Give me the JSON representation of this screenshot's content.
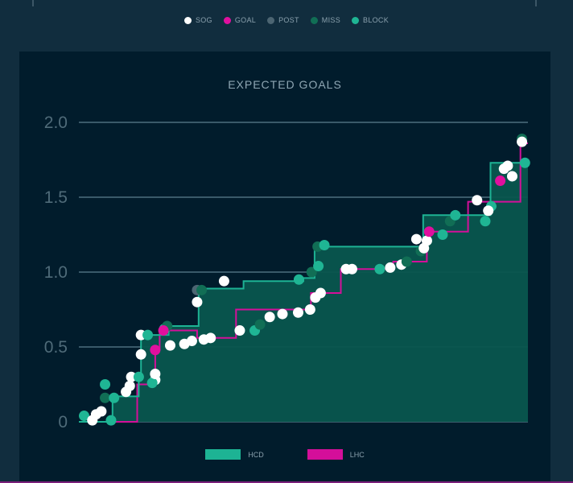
{
  "legend_top": [
    {
      "label": "SOG",
      "color": "#ffffff"
    },
    {
      "label": "GOAL",
      "color": "#e0109e"
    },
    {
      "label": "POST",
      "color": "#4c6572"
    },
    {
      "label": "MISS",
      "color": "#116e55"
    },
    {
      "label": "BLOCK",
      "color": "#1fb594"
    }
  ],
  "chart_data": {
    "type": "line",
    "title": "EXPECTED GOALS",
    "xlabel": "",
    "ylabel": "",
    "ylim": [
      0,
      2.0
    ],
    "xlim": [
      0,
      60
    ],
    "grid": true,
    "y_ticks": [
      "0",
      "0.5",
      "1.0",
      "1.5",
      "2.0"
    ],
    "y_tick_values": [
      0,
      0.5,
      1.0,
      1.5,
      2.0
    ],
    "legend_position": "bottom-center",
    "series": [
      {
        "name": "HCD",
        "color": "#1db394",
        "fill": "#08564e",
        "points": [
          [
            0,
            0
          ],
          [
            4.5,
            0
          ],
          [
            4.5,
            0.17
          ],
          [
            8,
            0.17
          ],
          [
            8,
            0.3
          ],
          [
            8.3,
            0.3
          ],
          [
            8.3,
            0.58
          ],
          [
            12,
            0.58
          ],
          [
            12,
            0.64
          ],
          [
            16,
            0.64
          ],
          [
            16,
            0.89
          ],
          [
            22,
            0.89
          ],
          [
            22,
            0.94
          ],
          [
            30,
            0.94
          ],
          [
            30,
            0.96
          ],
          [
            31.5,
            0.96
          ],
          [
            31.5,
            1.17
          ],
          [
            46,
            1.17
          ],
          [
            46,
            1.38
          ],
          [
            55,
            1.38
          ],
          [
            55,
            1.73
          ],
          [
            60,
            1.73
          ]
        ],
        "shots": [
          {
            "x": 0.7,
            "y": 0.04,
            "type": "BLOCK"
          },
          {
            "x": 4.3,
            "y": 0.01,
            "type": "BLOCK"
          },
          {
            "x": 3.5,
            "y": 0.25,
            "type": "BLOCK"
          },
          {
            "x": 3.5,
            "y": 0.16,
            "type": "MISS"
          },
          {
            "x": 4.7,
            "y": 0.16,
            "type": "BLOCK"
          },
          {
            "x": 6.3,
            "y": 0.2,
            "type": "SOG"
          },
          {
            "x": 6.8,
            "y": 0.24,
            "type": "SOG"
          },
          {
            "x": 7.0,
            "y": 0.3,
            "type": "SOG"
          },
          {
            "x": 8.0,
            "y": 0.3,
            "type": "BLOCK"
          },
          {
            "x": 8.3,
            "y": 0.45,
            "type": "SOG"
          },
          {
            "x": 8.3,
            "y": 0.58,
            "type": "SOG"
          },
          {
            "x": 9.2,
            "y": 0.58,
            "type": "BLOCK"
          },
          {
            "x": 11.4,
            "y": 0.62,
            "type": "BLOCK"
          },
          {
            "x": 11.8,
            "y": 0.64,
            "type": "MISS"
          },
          {
            "x": 15.8,
            "y": 0.8,
            "type": "SOG"
          },
          {
            "x": 15.8,
            "y": 0.88,
            "type": "POST"
          },
          {
            "x": 16.4,
            "y": 0.88,
            "type": "MISS"
          },
          {
            "x": 19.4,
            "y": 0.94,
            "type": "SOG"
          },
          {
            "x": 29.4,
            "y": 0.95,
            "type": "BLOCK"
          },
          {
            "x": 31.1,
            "y": 1.0,
            "type": "MISS"
          },
          {
            "x": 32.0,
            "y": 1.04,
            "type": "BLOCK"
          },
          {
            "x": 31.9,
            "y": 1.17,
            "type": "MISS"
          },
          {
            "x": 32.8,
            "y": 1.18,
            "type": "BLOCK"
          },
          {
            "x": 45.7,
            "y": 1.14,
            "type": "MISS"
          },
          {
            "x": 46.1,
            "y": 1.16,
            "type": "SOG"
          },
          {
            "x": 46.5,
            "y": 1.21,
            "type": "SOG"
          },
          {
            "x": 49.6,
            "y": 1.34,
            "type": "MISS"
          },
          {
            "x": 50.3,
            "y": 1.38,
            "type": "BLOCK"
          },
          {
            "x": 55.1,
            "y": 1.44,
            "type": "BLOCK"
          },
          {
            "x": 59.2,
            "y": 1.89,
            "type": "MISS"
          },
          {
            "x": 59.6,
            "y": 1.73,
            "type": "BLOCK"
          }
        ]
      },
      {
        "name": "LHC",
        "color": "#d40f9a",
        "points": [
          [
            0,
            0
          ],
          [
            7.8,
            0
          ],
          [
            7.8,
            0.25
          ],
          [
            10.2,
            0.25
          ],
          [
            10.2,
            0.48
          ],
          [
            10.8,
            0.48
          ],
          [
            10.8,
            0.61
          ],
          [
            15.8,
            0.61
          ],
          [
            15.8,
            0.56
          ],
          [
            21,
            0.56
          ],
          [
            21,
            0.75
          ],
          [
            31,
            0.75
          ],
          [
            31,
            0.86
          ],
          [
            35,
            0.86
          ],
          [
            35,
            1.02
          ],
          [
            42,
            1.02
          ],
          [
            42,
            1.07
          ],
          [
            46.5,
            1.07
          ],
          [
            46.5,
            1.27
          ],
          [
            52,
            1.27
          ],
          [
            52,
            1.47
          ],
          [
            59,
            1.47
          ],
          [
            59,
            1.86
          ],
          [
            60,
            1.86
          ]
        ],
        "shots": [
          {
            "x": 1.8,
            "y": 0.01,
            "type": "SOG"
          },
          {
            "x": 2.3,
            "y": 0.05,
            "type": "SOG"
          },
          {
            "x": 3.0,
            "y": 0.07,
            "type": "SOG"
          },
          {
            "x": 10.2,
            "y": 0.28,
            "type": "SOG"
          },
          {
            "x": 9.8,
            "y": 0.26,
            "type": "BLOCK"
          },
          {
            "x": 10.2,
            "y": 0.32,
            "type": "SOG"
          },
          {
            "x": 10.2,
            "y": 0.48,
            "type": "GOAL"
          },
          {
            "x": 11.3,
            "y": 0.61,
            "type": "GOAL"
          },
          {
            "x": 12.2,
            "y": 0.51,
            "type": "SOG"
          },
          {
            "x": 14.1,
            "y": 0.52,
            "type": "SOG"
          },
          {
            "x": 15.1,
            "y": 0.54,
            "type": "SOG"
          },
          {
            "x": 16.7,
            "y": 0.55,
            "type": "SOG"
          },
          {
            "x": 17.6,
            "y": 0.56,
            "type": "SOG"
          },
          {
            "x": 21.5,
            "y": 0.61,
            "type": "SOG"
          },
          {
            "x": 23.5,
            "y": 0.61,
            "type": "BLOCK"
          },
          {
            "x": 24.2,
            "y": 0.65,
            "type": "MISS"
          },
          {
            "x": 25.5,
            "y": 0.7,
            "type": "SOG"
          },
          {
            "x": 27.2,
            "y": 0.72,
            "type": "SOG"
          },
          {
            "x": 29.3,
            "y": 0.73,
            "type": "SOG"
          },
          {
            "x": 30.9,
            "y": 0.75,
            "type": "SOG"
          },
          {
            "x": 31.6,
            "y": 0.83,
            "type": "SOG"
          },
          {
            "x": 32.3,
            "y": 0.86,
            "type": "SOG"
          },
          {
            "x": 35.7,
            "y": 1.02,
            "type": "SOG"
          },
          {
            "x": 36.5,
            "y": 1.02,
            "type": "SOG"
          },
          {
            "x": 40.2,
            "y": 1.02,
            "type": "BLOCK"
          },
          {
            "x": 41.6,
            "y": 1.03,
            "type": "SOG"
          },
          {
            "x": 43.1,
            "y": 1.05,
            "type": "SOG"
          },
          {
            "x": 43.8,
            "y": 1.07,
            "type": "MISS"
          },
          {
            "x": 45.1,
            "y": 1.22,
            "type": "SOG"
          },
          {
            "x": 46.8,
            "y": 1.27,
            "type": "GOAL"
          },
          {
            "x": 48.6,
            "y": 1.25,
            "type": "BLOCK"
          },
          {
            "x": 54.3,
            "y": 1.34,
            "type": "BLOCK"
          },
          {
            "x": 53.2,
            "y": 1.48,
            "type": "SOG"
          },
          {
            "x": 54.7,
            "y": 1.41,
            "type": "SOG"
          },
          {
            "x": 56.3,
            "y": 1.61,
            "type": "GOAL"
          },
          {
            "x": 56.8,
            "y": 1.69,
            "type": "SOG"
          },
          {
            "x": 57.3,
            "y": 1.71,
            "type": "SOG"
          },
          {
            "x": 57.9,
            "y": 1.64,
            "type": "SOG"
          },
          {
            "x": 59.2,
            "y": 1.87,
            "type": "SOG"
          }
        ]
      }
    ]
  }
}
